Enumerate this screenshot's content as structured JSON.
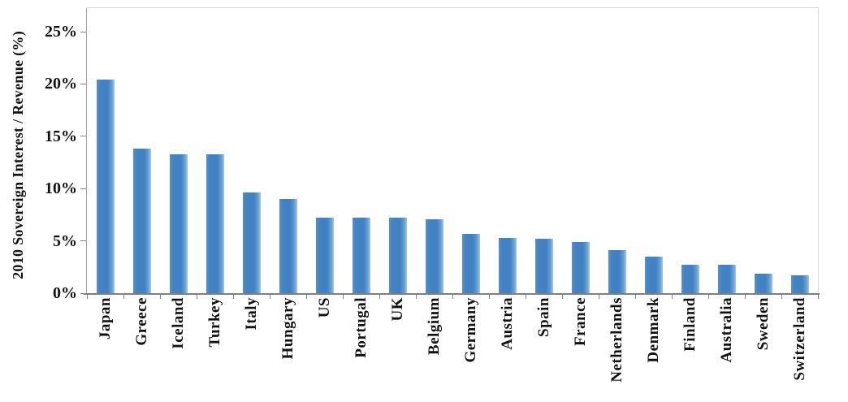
{
  "chart_data": {
    "type": "bar",
    "title": "",
    "xlabel": "",
    "ylabel": "2010 Sovereign Interest / Revenue (%)",
    "ylim": [
      0,
      25
    ],
    "ytick_step": 5,
    "ytick_labels": [
      "0%",
      "5%",
      "10%",
      "15%",
      "20%",
      "25%"
    ],
    "grid": false,
    "legend_position": "none",
    "bar_color": "#4181c2",
    "bar_edge_highlight": "#a3c7e6",
    "axis_color": "#7f7f7f",
    "plot_border_color": "#d9d9d9",
    "text_color": "#111111",
    "categories": [
      "Japan",
      "Greece",
      "Iceland",
      "Turkey",
      "Italy",
      "Hungary",
      "US",
      "Portugal",
      "UK",
      "Belgium",
      "Germany",
      "Austria",
      "Spain",
      "France",
      "Netherlands",
      "Denmark",
      "Finland",
      "Australia",
      "Sweden",
      "Switzerland"
    ],
    "values": [
      20.4,
      13.8,
      13.3,
      13.3,
      9.6,
      9.0,
      7.2,
      7.2,
      7.2,
      7.1,
      5.7,
      5.3,
      5.2,
      4.9,
      4.1,
      3.5,
      2.7,
      2.7,
      1.9,
      1.7
    ]
  }
}
